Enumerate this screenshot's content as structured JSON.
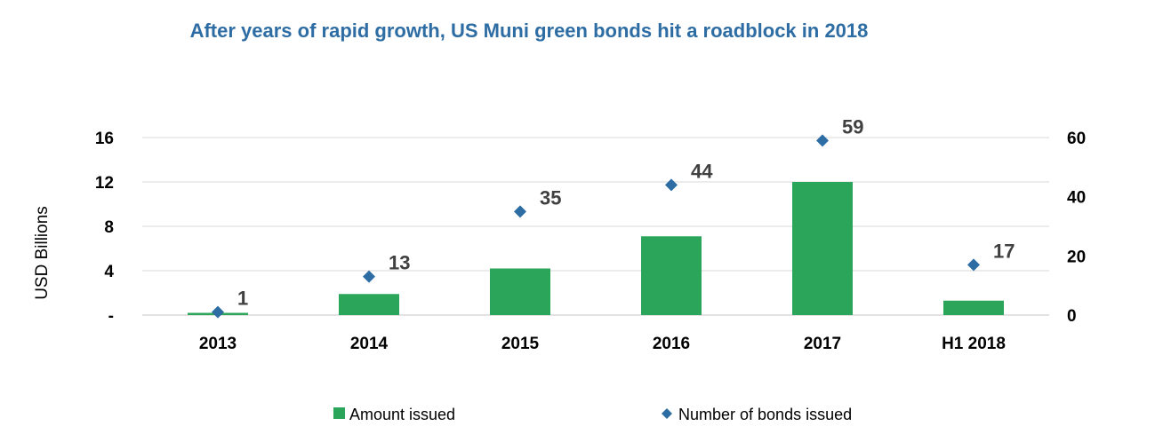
{
  "colors": {
    "title": "#2E6DA4",
    "bar": "#2BA55A",
    "marker": "#2E6DA4",
    "grid": "#D9D9D9"
  },
  "chart_data": {
    "type": "bar",
    "title": "After years of rapid growth, US Muni green bonds hit a roadblock in 2018",
    "categories": [
      "2013",
      "2014",
      "2015",
      "2016",
      "2017",
      "H1 2018"
    ],
    "ylabel": "USD Billions",
    "y_ticks": [
      "-",
      "4",
      "8",
      "12",
      "16"
    ],
    "y2_ticks": [
      "0",
      "20",
      "40",
      "60"
    ],
    "ylim": [
      0,
      16
    ],
    "y2lim": [
      0,
      60
    ],
    "grid": true,
    "legend_position": "bottom",
    "series": [
      {
        "name": "Amount issued",
        "type": "bar",
        "axis": "left",
        "values": [
          0.2,
          1.9,
          4.2,
          7.1,
          12.0,
          1.3
        ]
      },
      {
        "name": "Number of bonds issued",
        "type": "scatter",
        "axis": "right",
        "marker": "diamond",
        "values": [
          1,
          13,
          35,
          44,
          59,
          17
        ],
        "labels": [
          "1",
          "13",
          "35",
          "44",
          "59",
          "17"
        ]
      }
    ]
  }
}
